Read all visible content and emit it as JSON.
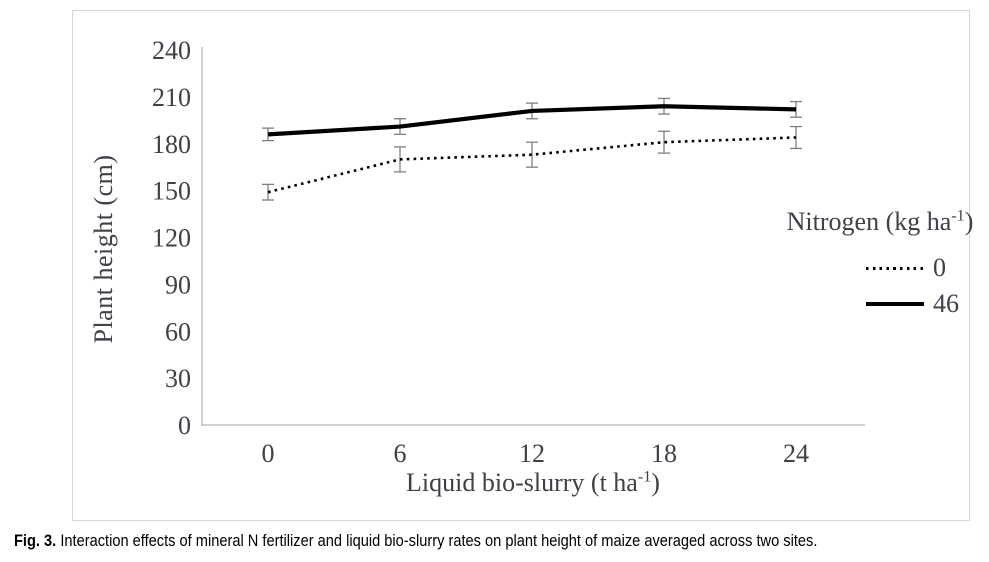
{
  "figure": {
    "caption_label": "Fig. 3.",
    "caption_text": "Interaction effects of mineral N fertilizer and liquid bio-slurry rates on plant height of maize averaged across two sites."
  },
  "axes": {
    "ylabel": "Plant height (cm)",
    "xlabel_pre": "Liquid bio-slurry (t ha",
    "xlabel_sup": "-1",
    "xlabel_post": ")"
  },
  "legend": {
    "title_pre": "Nitrogen (kg ha",
    "title_sup": "-1",
    "title_post": ")",
    "items": [
      {
        "label": "0",
        "style": "dotted"
      },
      {
        "label": "46",
        "style": "solid"
      }
    ]
  },
  "chart_data": {
    "type": "line",
    "title": "",
    "xlabel": "Liquid bio-slurry (t ha-1)",
    "ylabel": "Plant height (cm)",
    "categories": [
      0,
      6,
      12,
      18,
      24
    ],
    "yticks": [
      0,
      30,
      60,
      90,
      120,
      150,
      180,
      210,
      240
    ],
    "ylim": [
      0,
      240
    ],
    "grid": false,
    "legend_title": "Nitrogen (kg ha-1)",
    "legend_position": "right",
    "error_bars": true,
    "series": [
      {
        "name": "0",
        "style": "dotted",
        "color": "#000000",
        "values": [
          149,
          170,
          173,
          181,
          184
        ],
        "errors": [
          5,
          8,
          8,
          7,
          7
        ]
      },
      {
        "name": "46",
        "style": "solid",
        "color": "#000000",
        "values": [
          186,
          191,
          201,
          204,
          202
        ],
        "errors": [
          4,
          5,
          5,
          5,
          5
        ]
      }
    ]
  },
  "colors": {
    "chart_text": "#3f4049",
    "axis_line": "#c0c0c0",
    "error_bar": "#7f7f7f",
    "series_line": "#000000",
    "frame_border": "#d7d7d7"
  }
}
